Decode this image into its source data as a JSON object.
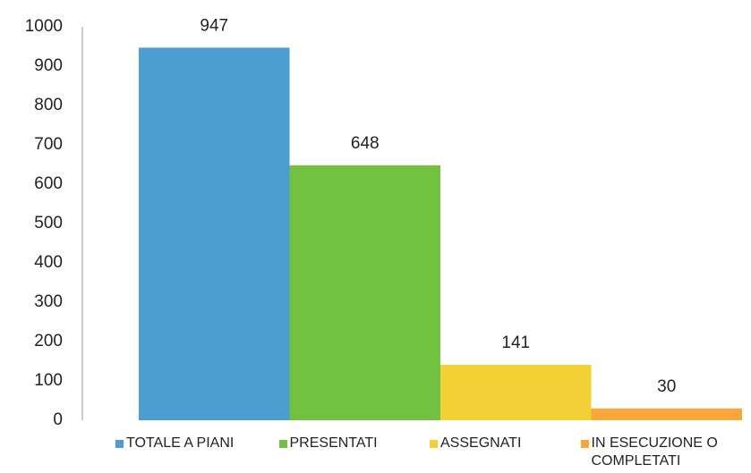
{
  "chart_data": {
    "type": "bar",
    "series": [
      {
        "name": "TOTALE A PIANI",
        "color": "#4b9fd0",
        "values": [
          947
        ]
      },
      {
        "name": "PRESENTATI",
        "color": "#72c141",
        "values": [
          648
        ]
      },
      {
        "name": "ASSEGNATI",
        "color": "#f2d136",
        "values": [
          141
        ]
      },
      {
        "name": "IN ESECUZIONE O COMPLETATI",
        "color": "#f9a63a",
        "values": [
          30
        ]
      }
    ],
    "ylim": [
      0,
      1000
    ],
    "yticks": [
      0,
      100,
      200,
      300,
      400,
      500,
      600,
      700,
      800,
      900,
      1000
    ],
    "grid": false,
    "legend": "bottom"
  }
}
